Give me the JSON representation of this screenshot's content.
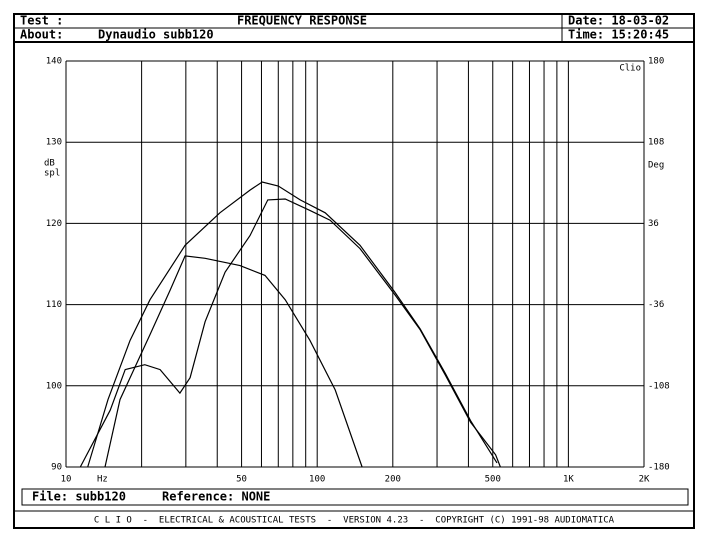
{
  "header": {
    "test_label": "Test :",
    "title": "FREQUENCY RESPONSE",
    "date": "Date: 18-03-02",
    "about_label": "About:",
    "about": "Dynaudio subb120",
    "time": "Time: 15:20:45"
  },
  "footer": {
    "file": "File: subb120",
    "reference": "Reference: NONE",
    "banner": "C L I O  -  ELECTRICAL & ACOUSTICAL TESTS  -  VERSION 4.23  -  COPYRIGHT (C) 1991-98 AUDIOMATICA"
  },
  "chart_data": {
    "type": "line",
    "xscale": "log",
    "grid": true,
    "y_label": [
      "dB",
      "spl"
    ],
    "y2_label": "Deg",
    "x_unit": "Hz",
    "brand": "Clio",
    "xlim": [
      10,
      2000
    ],
    "xticks": [
      10,
      50,
      100,
      200,
      500,
      {
        "value": 1000,
        "label": "1K"
      },
      {
        "value": 2000,
        "label": "2K"
      }
    ],
    "xgrid": [
      20,
      30,
      40,
      60,
      70,
      80,
      90,
      300,
      400,
      600,
      700,
      800,
      900
    ],
    "ylim": [
      90,
      140
    ],
    "yticks": [
      90,
      100,
      110,
      120,
      130,
      140
    ],
    "y2lim": [
      -180,
      180
    ],
    "y2ticks": [
      -180,
      -108,
      -36,
      36,
      108,
      180
    ],
    "series": [
      {
        "color": "#000000",
        "x": [
          12.2,
          14.7,
          18,
          21.6,
          29.8,
          41,
          54,
          60.4,
          70,
          85.6,
          107.6,
          148,
          204,
          257,
          324,
          408,
          520
        ],
        "values": [
          90,
          98.3,
          105.6,
          110.6,
          117.3,
          121.3,
          124.1,
          125.1,
          124.6,
          122.9,
          121.3,
          117.3,
          111.5,
          107,
          101.5,
          95.7,
          90.5
        ]
      },
      {
        "color": "#000000",
        "x": [
          14.3,
          16.4,
          21.6,
          26,
          29.8,
          35.8,
          49.3,
          62,
          74.6,
          93.5,
          118,
          151
        ],
        "values": [
          90,
          98.3,
          106.3,
          111.8,
          116,
          115.7,
          114.8,
          113.6,
          110.6,
          105.6,
          99.5,
          90
        ]
      },
      {
        "color": "#000000",
        "x": [
          11.4,
          15,
          17.2,
          20.6,
          23.7,
          28.4,
          31.2,
          35.8,
          43,
          54,
          63.6,
          74.6,
          93.5,
          112.6,
          148,
          204,
          257,
          324,
          408,
          513,
          536
        ],
        "values": [
          90,
          97,
          102,
          102.6,
          102,
          99.1,
          101,
          107.9,
          114,
          118.5,
          122.9,
          123,
          121.6,
          120.4,
          116.9,
          111.2,
          106.9,
          101.3,
          95.5,
          91.5,
          90
        ]
      }
    ]
  }
}
